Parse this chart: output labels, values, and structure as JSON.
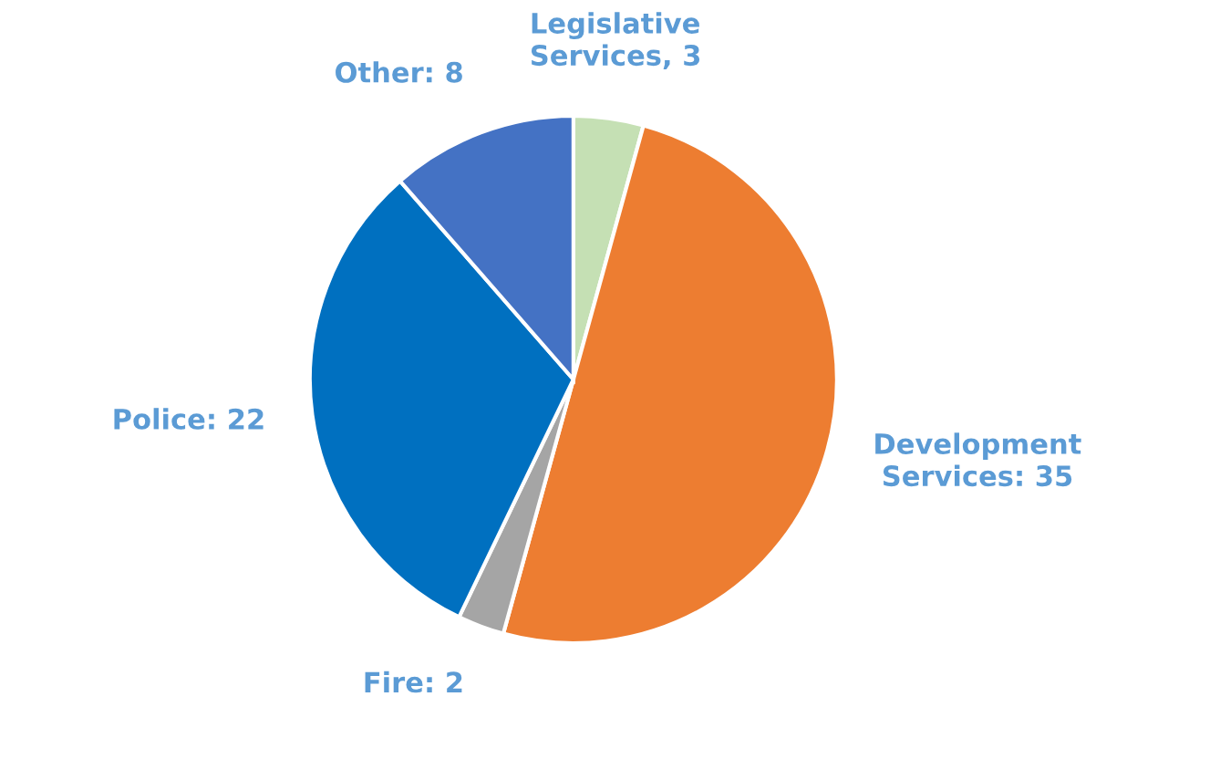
{
  "chart_data": {
    "type": "pie",
    "categories": [
      "Legislative Services",
      "Development Services",
      "Fire",
      "Police",
      "Other"
    ],
    "values": [
      3,
      35,
      2,
      22,
      8
    ],
    "colors": [
      "#c5e0b4",
      "#ed7d31",
      "#a5a5a5",
      "#0070c0",
      "#4472c4"
    ],
    "value_labels": [
      ", 3",
      ": 35",
      ": 2",
      ": 22",
      ": 8"
    ]
  }
}
